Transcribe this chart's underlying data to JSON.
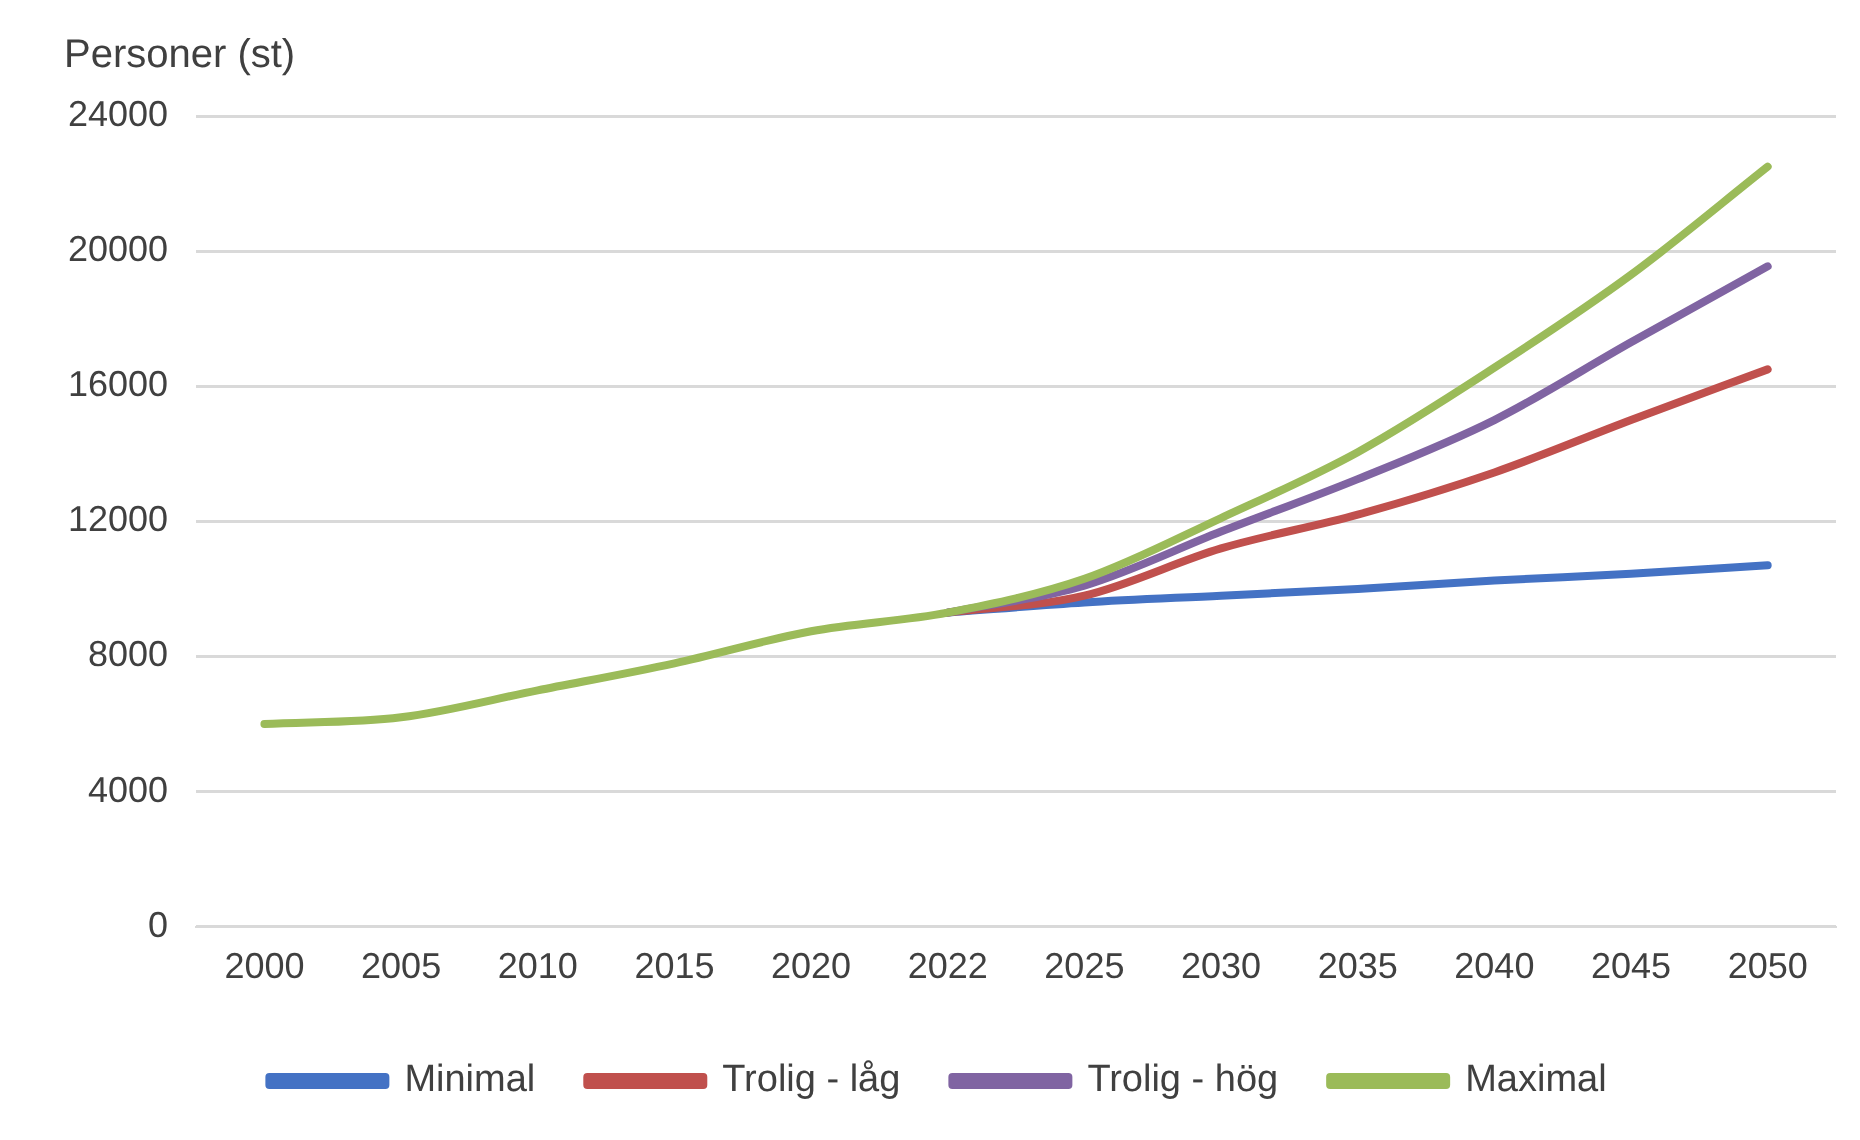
{
  "chart_data": {
    "type": "line",
    "ylabel": "Personer (st)",
    "categories": [
      "2000",
      "2005",
      "2010",
      "2015",
      "2020",
      "2022",
      "2025",
      "2030",
      "2035",
      "2040",
      "2045",
      "2050"
    ],
    "series": [
      {
        "name": "Minimal",
        "color": "#4472c4",
        "values": [
          null,
          null,
          null,
          null,
          null,
          9300,
          9600,
          9800,
          10000,
          10250,
          10450,
          10700
        ]
      },
      {
        "name": "Trolig - låg",
        "color": "#c0504d",
        "values": [
          null,
          null,
          null,
          null,
          null,
          9300,
          9800,
          11200,
          12200,
          13450,
          15000,
          16500
        ]
      },
      {
        "name": "Trolig - hög",
        "color": "#8064a2",
        "values": [
          null,
          null,
          null,
          null,
          null,
          9300,
          10100,
          11700,
          13250,
          15000,
          17300,
          19550
        ]
      },
      {
        "name": "Maximal",
        "color": "#9bbb59",
        "values": [
          6000,
          6200,
          7000,
          7800,
          8750,
          9300,
          10300,
          12100,
          14050,
          16550,
          19300,
          22500
        ]
      }
    ],
    "ylim": [
      0,
      24000
    ],
    "yticks": [
      0,
      4000,
      8000,
      12000,
      16000,
      20000,
      24000
    ],
    "grid": "y",
    "legend": "bottom",
    "marker": "none",
    "line_style": "solid"
  }
}
